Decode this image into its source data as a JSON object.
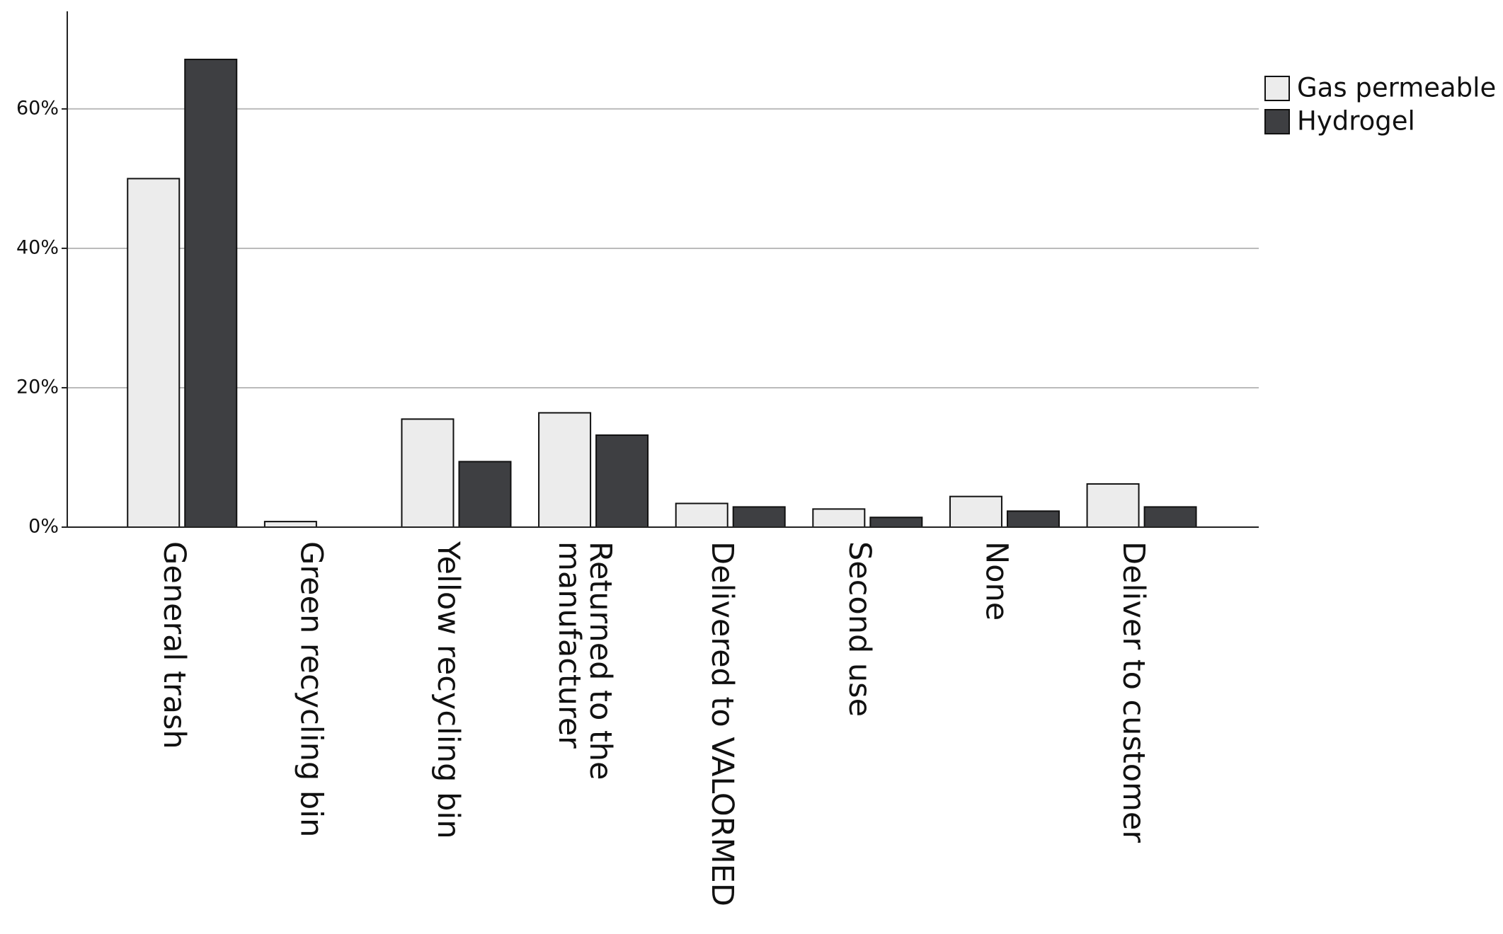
{
  "chart_data": {
    "type": "bar",
    "categories": [
      "General trash",
      "Green recycling bin",
      "Yellow recycling bin",
      "Returned to the manufacturer",
      "Delivered to VALORMED",
      "Second use",
      "None",
      "Deliver to customer"
    ],
    "series": [
      {
        "name": "Gas permeable",
        "color": "#ececec",
        "values": [
          50,
          0.8,
          15.5,
          16.4,
          3.4,
          2.6,
          4.4,
          6.2
        ]
      },
      {
        "name": "Hydrogel",
        "color": "#3e3f42",
        "values": [
          67.1,
          0,
          9.4,
          13.2,
          2.9,
          1.4,
          2.3,
          2.9
        ]
      }
    ],
    "ylim": [
      0,
      74
    ],
    "yticks": [
      {
        "value": 0,
        "label": "0%"
      },
      {
        "value": 20,
        "label": "20%"
      },
      {
        "value": 40,
        "label": "40%"
      },
      {
        "value": 60,
        "label": "60%"
      }
    ],
    "grid": true,
    "legend": "upper right"
  }
}
